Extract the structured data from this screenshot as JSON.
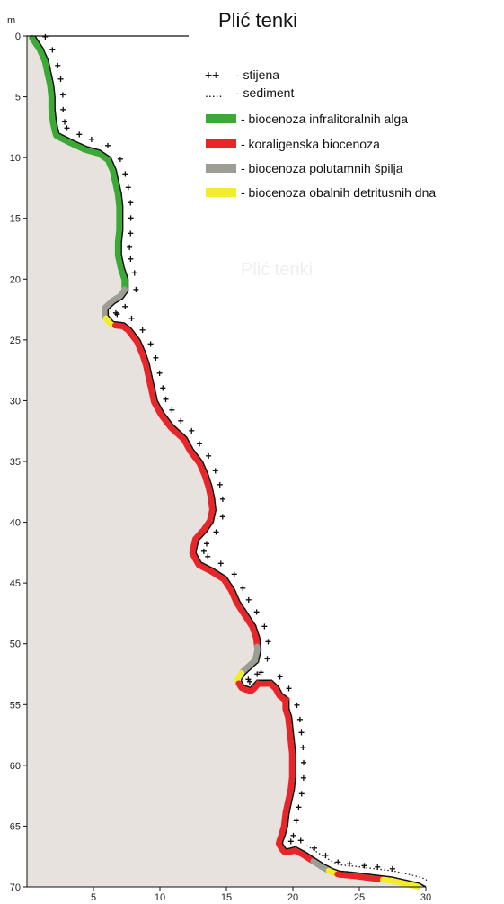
{
  "title": "Plić tenki",
  "watermark": "Plić tenki",
  "chart_data": {
    "type": "profile",
    "y_unit": "m",
    "xlim": [
      0,
      30
    ],
    "ylim": [
      0,
      70
    ],
    "x_ticks": [
      5,
      10,
      15,
      20,
      25,
      30
    ],
    "y_ticks": [
      0,
      5,
      10,
      15,
      20,
      25,
      30,
      35,
      40,
      45,
      50,
      55,
      60,
      65,
      70
    ],
    "legend": [
      {
        "symbol": "++",
        "label": "- stijena"
      },
      {
        "symbol": ".....",
        "label": "- sediment"
      },
      {
        "color": "#3aaa35",
        "label": "- biocenoza infralitoralnih alga"
      },
      {
        "color": "#e8262a",
        "label": "- koraligenska biocenoza"
      },
      {
        "color": "#9d9d94",
        "label": "- biocenoza polutamnih špilja"
      },
      {
        "color": "#f2ec2c",
        "label": "- biocenoza obalnih detritusnih dna"
      }
    ],
    "profile": [
      [
        0.6,
        0
      ],
      [
        1.2,
        1
      ],
      [
        1.6,
        2
      ],
      [
        1.8,
        3
      ],
      [
        2,
        4
      ],
      [
        2.1,
        5
      ],
      [
        2.1,
        6
      ],
      [
        2.2,
        7
      ],
      [
        2.4,
        8
      ],
      [
        3.5,
        8.6
      ],
      [
        4.5,
        9.1
      ],
      [
        5.5,
        9.4
      ],
      [
        6.3,
        10
      ],
      [
        6.7,
        11
      ],
      [
        6.9,
        12
      ],
      [
        7.1,
        13
      ],
      [
        7.2,
        14
      ],
      [
        7.2,
        15
      ],
      [
        7.2,
        16
      ],
      [
        7.1,
        17
      ],
      [
        7.1,
        18
      ],
      [
        7.3,
        19
      ],
      [
        7.6,
        20
      ],
      [
        7.6,
        21
      ],
      [
        7.2,
        21.6
      ],
      [
        6.6,
        22
      ],
      [
        6.1,
        22.5
      ],
      [
        6.1,
        23
      ],
      [
        6.5,
        23.5
      ],
      [
        7.3,
        23.6
      ],
      [
        7.8,
        24
      ],
      [
        8.5,
        25
      ],
      [
        8.9,
        26
      ],
      [
        9.2,
        27
      ],
      [
        9.4,
        28
      ],
      [
        9.6,
        29
      ],
      [
        9.8,
        30
      ],
      [
        10.3,
        31
      ],
      [
        11,
        32
      ],
      [
        12,
        33
      ],
      [
        12.5,
        34
      ],
      [
        13.2,
        35
      ],
      [
        13.6,
        36
      ],
      [
        13.9,
        37
      ],
      [
        14.1,
        38
      ],
      [
        14.2,
        39
      ],
      [
        14,
        40
      ],
      [
        13.5,
        40.8
      ],
      [
        12.9,
        41.5
      ],
      [
        12.7,
        42.5
      ],
      [
        13.1,
        43.3
      ],
      [
        14,
        43.8
      ],
      [
        15,
        44.5
      ],
      [
        15.6,
        45.5
      ],
      [
        16,
        46.5
      ],
      [
        16.6,
        47.5
      ],
      [
        17.2,
        48.5
      ],
      [
        17.5,
        49.5
      ],
      [
        17.6,
        50.5
      ],
      [
        17.4,
        51.5
      ],
      [
        16.9,
        52
      ],
      [
        16.4,
        52.5
      ],
      [
        16.1,
        53
      ],
      [
        16.3,
        53.4
      ],
      [
        16.8,
        53.6
      ],
      [
        17.3,
        53
      ],
      [
        18.4,
        53
      ],
      [
        18.9,
        53.5
      ],
      [
        19.2,
        54.1
      ],
      [
        19.7,
        54.5
      ],
      [
        19.7,
        55.3
      ],
      [
        19.9,
        56
      ],
      [
        20,
        57
      ],
      [
        20.1,
        58
      ],
      [
        20.2,
        59
      ],
      [
        20.2,
        60
      ],
      [
        20.2,
        61
      ],
      [
        20.1,
        62
      ],
      [
        19.9,
        63
      ],
      [
        19.7,
        64
      ],
      [
        19.6,
        65
      ],
      [
        19.4,
        65.8
      ],
      [
        19.2,
        66.4
      ],
      [
        19.5,
        66.9
      ],
      [
        20.2,
        66.7
      ],
      [
        20.9,
        67.1
      ],
      [
        21.6,
        67.6
      ],
      [
        22.3,
        68.1
      ],
      [
        23,
        68.5
      ],
      [
        23.5,
        68.7
      ],
      [
        24.5,
        68.8
      ],
      [
        26,
        69
      ],
      [
        27.5,
        69.2
      ],
      [
        29.5,
        69.7
      ],
      [
        30,
        70
      ]
    ],
    "segments": [
      {
        "biocenosis": "biocenoza infralitoralnih alga",
        "color": "#3aaa35",
        "range": [
          0,
          34
        ]
      },
      {
        "biocenosis": "biocenoza polutamnih špilja",
        "color": "#9d9d94",
        "range": [
          34,
          38
        ]
      },
      {
        "biocenosis": "biocenoza obalnih detritusnih dna",
        "color": "#f2ec2c",
        "range": [
          38,
          39
        ]
      },
      {
        "biocenosis": "koraligenska biocenoza",
        "color": "#e8262a",
        "range": [
          39,
          83
        ]
      },
      {
        "biocenosis": "biocenoza polutamnih špilja",
        "color": "#9d9d94",
        "range": [
          83,
          87
        ]
      },
      {
        "biocenosis": "biocenoza obalnih detritusnih dna",
        "color": "#f2ec2c",
        "range": [
          87,
          88
        ]
      },
      {
        "biocenosis": "koraligenska biocenoza",
        "color": "#e8262a",
        "range": [
          88,
          117
        ]
      },
      {
        "biocenosis": "biocenoza polutamnih špilja",
        "color": "#9d9d94",
        "range": [
          117,
          119
        ]
      },
      {
        "biocenosis": "biocenoza obalnih detritusnih dna",
        "color": "#f2ec2c",
        "range": [
          119,
          120
        ]
      },
      {
        "biocenosis": "koraligenska biocenoza",
        "color": "#e8262a",
        "range": [
          120,
          125
        ]
      },
      {
        "biocenosis": "biocenoza obalnih detritusnih dna",
        "color": "#f2ec2c",
        "range": [
          125,
          129
        ]
      }
    ]
  }
}
